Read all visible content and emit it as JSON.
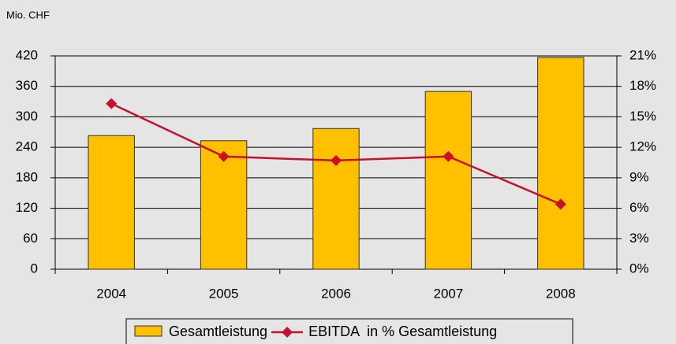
{
  "chart_data": {
    "type": "bar",
    "y_axis_label": "Mio. CHF",
    "categories": [
      "2004",
      "2005",
      "2006",
      "2007",
      "2008"
    ],
    "series": [
      {
        "name": "Gesamtleistung",
        "type": "bar",
        "color": "#ffc000",
        "values": [
          263,
          253,
          277,
          350,
          417
        ]
      },
      {
        "name": "EBITDA  in % Gesamtleistung",
        "type": "line",
        "axis": "y2",
        "color": "#c8102e",
        "values": [
          16.3,
          11.1,
          10.7,
          11.1,
          6.4
        ]
      }
    ],
    "ylim": [
      0,
      420
    ],
    "yticks": [
      0,
      60,
      120,
      180,
      240,
      300,
      360,
      420
    ],
    "y2lim": [
      0,
      21
    ],
    "y2ticks": [
      {
        "value": 0,
        "label": "0%"
      },
      {
        "value": 3,
        "label": "3%"
      },
      {
        "value": 6,
        "label": "6%"
      },
      {
        "value": 9,
        "label": "9%"
      },
      {
        "value": 12,
        "label": "12%"
      },
      {
        "value": 15,
        "label": "15%"
      },
      {
        "value": 18,
        "label": "18%"
      },
      {
        "value": 21,
        "label": "21%"
      }
    ],
    "grid": true,
    "legend": "bottom"
  }
}
